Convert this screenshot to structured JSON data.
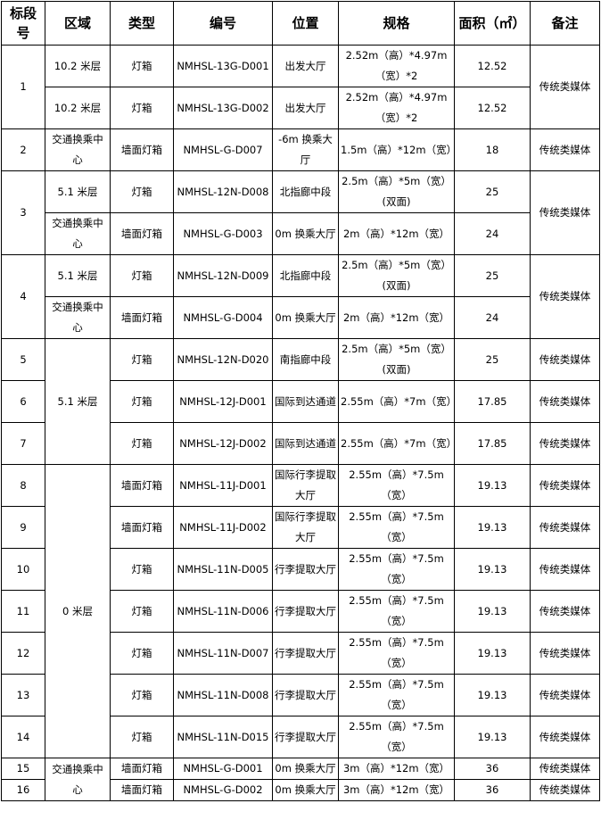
{
  "table": {
    "header": [
      "标段号",
      "区域",
      "类型",
      "编号",
      "位置",
      "规格",
      "面积（㎡）",
      "备注"
    ],
    "rows": [
      [
        "1",
        "10.2 米层",
        "灯箱",
        "NMHSL-13G-D001",
        "出发大厅",
        "2.52m（高）*4.97m（宽）*2",
        "12.52",
        "传统类媒体"
      ],
      [
        "10.2 米层",
        "灯箱",
        "NMHSL-13G-D002",
        "出发大厅",
        "2.52m（高）*4.97m（宽）*2",
        "12.52"
      ],
      [
        "2",
        "交通换乘中心",
        "墙面灯箱",
        "NMHSL-G-D007",
        "-6m 换乘大厅",
        "1.5m（高）*12m（宽）",
        "18",
        "传统类媒体"
      ],
      [
        "3",
        "5.1 米层",
        "灯箱",
        "NMHSL-12N-D008",
        "北指廊中段",
        "2.5m（高）*5m（宽）(双面)",
        "25",
        "传统类媒体"
      ],
      [
        "交通换乘中心",
        "墙面灯箱",
        "NMHSL-G-D003",
        "0m 换乘大厅",
        "2m（高）*12m（宽）",
        "24"
      ],
      [
        "4",
        "5.1 米层",
        "灯箱",
        "NMHSL-12N-D009",
        "北指廊中段",
        "2.5m（高）*5m（宽）(双面)",
        "25",
        "传统类媒体"
      ],
      [
        "交通换乘中心",
        "墙面灯箱",
        "NMHSL-G-D004",
        "0m 换乘大厅",
        "2m（高）*12m（宽）",
        "24"
      ],
      [
        "5",
        "5.1 米层",
        "灯箱",
        "NMHSL-12N-D020",
        "南指廊中段",
        "2.5m（高）*5m（宽）(双面)",
        "25",
        "传统类媒体"
      ],
      [
        "6",
        "灯箱",
        "NMHSL-12J-D001",
        "国际到达通道",
        "2.55m（高）*7m（宽）",
        "17.85",
        "传统类媒体"
      ],
      [
        "7",
        "灯箱",
        "NMHSL-12J-D002",
        "国际到达通道",
        "2.55m（高）*7m（宽）",
        "17.85",
        "传统类媒体"
      ],
      [
        "8",
        "0 米层",
        "墙面灯箱",
        "NMHSL-11J-D001",
        "国际行李提取大厅",
        "2.55m（高）*7.5m（宽）",
        "19.13",
        "传统类媒体"
      ],
      [
        "9",
        "墙面灯箱",
        "NMHSL-11J-D002",
        "国际行李提取大厅",
        "2.55m（高）*7.5m（宽）",
        "19.13",
        "传统类媒体"
      ],
      [
        "10",
        "灯箱",
        "NMHSL-11N-D005",
        "行李提取大厅",
        "2.55m（高）*7.5m（宽）",
        "19.13",
        "传统类媒体"
      ],
      [
        "11",
        "灯箱",
        "NMHSL-11N-D006",
        "行李提取大厅",
        "2.55m（高）*7.5m（宽）",
        "19.13",
        "传统类媒体"
      ],
      [
        "12",
        "灯箱",
        "NMHSL-11N-D007",
        "行李提取大厅",
        "2.55m（高）*7.5m（宽）",
        "19.13",
        "传统类媒体"
      ],
      [
        "13",
        "灯箱",
        "NMHSL-11N-D008",
        "行李提取大厅",
        "2.55m（高）*7.5m（宽）",
        "19.13",
        "传统类媒体"
      ],
      [
        "14",
        "灯箱",
        "NMHSL-11N-D015",
        "行李提取大厅",
        "2.55m（高）*7.5m（宽）",
        "19.13",
        "传统类媒体"
      ],
      [
        "15",
        "交通换乘中心",
        "墙面灯箱",
        "NMHSL-G-D001",
        "0m 换乘大厅",
        "3m（高）*12m（宽）",
        "36",
        "传统类媒体"
      ],
      [
        "16",
        "墙面灯箱",
        "NMHSL-G-D002",
        "0m 换乘大厅",
        "3m（高）*12m（宽）",
        "36",
        "传统类媒体"
      ]
    ]
  }
}
